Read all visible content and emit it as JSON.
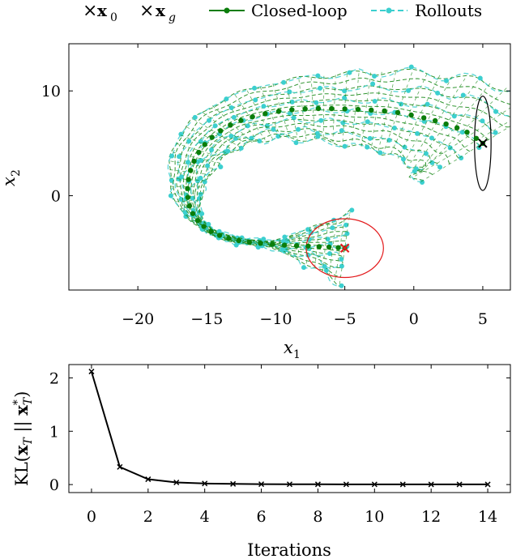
{
  "legend": [
    {
      "marker": "×",
      "label": "x",
      "sub": "0",
      "color": "#000000"
    },
    {
      "marker": "×",
      "label": "x",
      "sub": "g",
      "color": "#e31a1c"
    },
    {
      "marker": "line-dot",
      "label": "Closed-loop",
      "color": "#0a7d0a"
    },
    {
      "marker": "dash-dot",
      "label": "Rollouts",
      "color": "#3ccfcf"
    }
  ],
  "colors": {
    "closed_loop": "#0a7d0a",
    "rollouts": "#3ccfcf",
    "rollout_dash": "#1a8a1a",
    "goal": "#e31a1c",
    "start": "#000000"
  },
  "chart_data": [
    {
      "type": "line",
      "xlabel": "x",
      "xlabel_sub": "1",
      "ylabel": "x",
      "ylabel_sub": "2",
      "xlim": [
        -25,
        7
      ],
      "ylim": [
        -9,
        14.5
      ],
      "xticks": [
        -20,
        -15,
        -10,
        -5,
        0,
        5
      ],
      "xtick_labels": [
        "−20",
        "−15",
        "−10",
        "−5",
        "0",
        "5"
      ],
      "yticks": [
        -10,
        0,
        10
      ],
      "ytick_labels": [
        "",
        "0",
        "10"
      ],
      "start": {
        "x": 5,
        "y": 5
      },
      "goal": {
        "x": -5,
        "y": -5
      },
      "start_ellipse": {
        "rx": 0.6,
        "ry": 4.5
      },
      "goal_ellipse": {
        "rx": 2.8,
        "ry": 2.8
      },
      "closed_loop": {
        "name": "Closed-loop",
        "x": [
          5,
          3.8,
          2.2,
          0.5,
          -1.5,
          -3.5,
          -5.5,
          -7.5,
          -9.5,
          -11.5,
          -13.2,
          -14.6,
          -15.6,
          -16.2,
          -16.4,
          -16.2,
          -15.5,
          -14.4,
          -13,
          -11.4,
          -9.6,
          -7.8,
          -6.2,
          -5
        ],
        "y": [
          5,
          6.1,
          6.9,
          7.5,
          8,
          8.2,
          8.3,
          8.3,
          8.1,
          7.6,
          6.8,
          5.6,
          4.1,
          2.3,
          0.5,
          -1.2,
          -2.6,
          -3.6,
          -4.2,
          -4.5,
          -4.7,
          -4.8,
          -4.9,
          -5
        ]
      },
      "grid": false
    },
    {
      "type": "line",
      "xlabel": "Iterations",
      "ylabel": "KL(x_T || x*_T)",
      "ylabel_parts": [
        "KL(",
        "x",
        "T",
        " || ",
        "x",
        "*",
        "T",
        ")"
      ],
      "xlim": [
        -0.8,
        14.8
      ],
      "ylim": [
        -0.15,
        2.25
      ],
      "xticks": [
        0,
        2,
        4,
        6,
        8,
        10,
        12,
        14
      ],
      "yticks": [
        0,
        1,
        2
      ],
      "series": [
        {
          "x": [
            0,
            1,
            2,
            3,
            4,
            5,
            6,
            7,
            8,
            9,
            10,
            11,
            12,
            13,
            14
          ],
          "values": [
            2.12,
            0.33,
            0.1,
            0.04,
            0.02,
            0.012,
            0.008,
            0.006,
            0.005,
            0.004,
            0.004,
            0.003,
            0.003,
            0.003,
            0.003
          ]
        }
      ],
      "grid": false
    }
  ]
}
